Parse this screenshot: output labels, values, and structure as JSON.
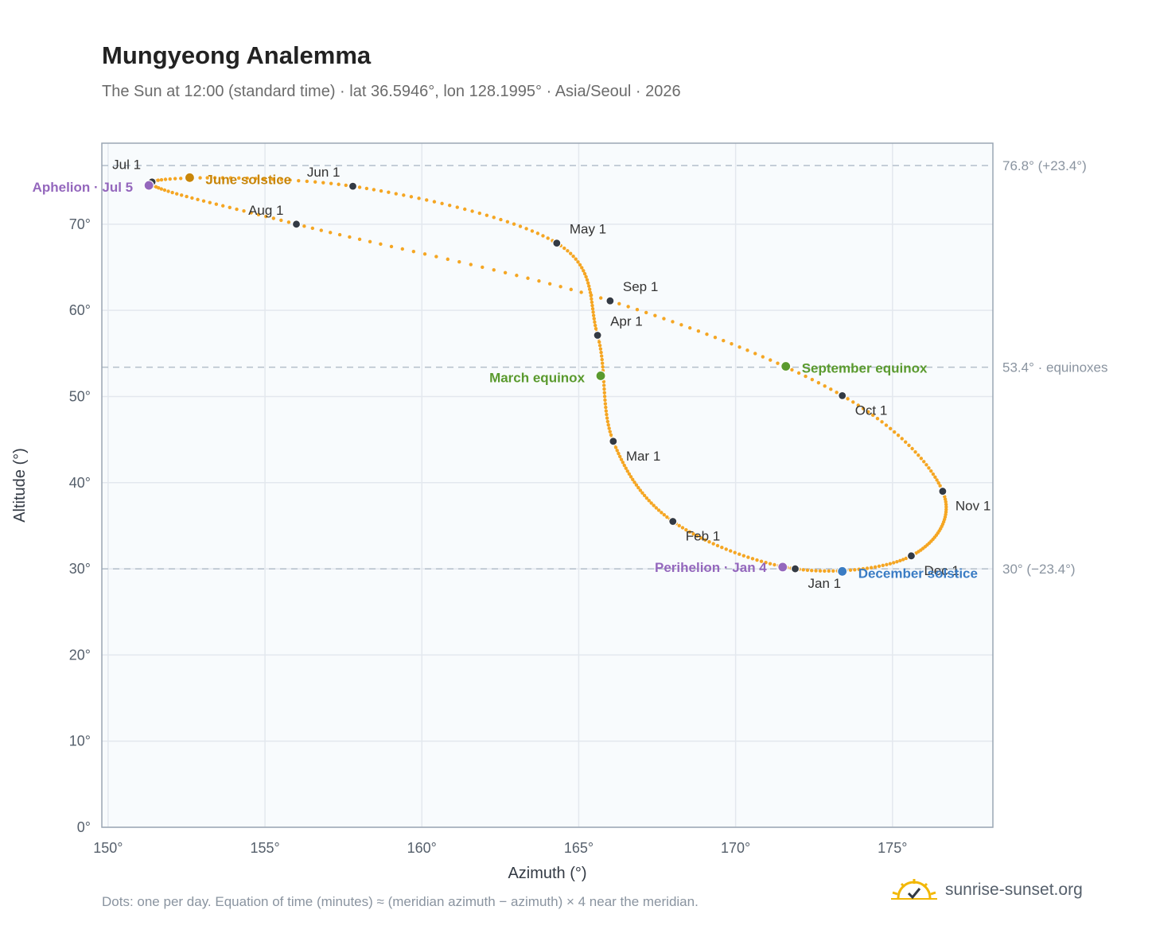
{
  "header": {
    "title": "Mungyeong Analemma",
    "subtitle": "The Sun at 12:00 (standard time) · lat 36.5946°, lon 128.1995° · Asia/Seoul · 2026"
  },
  "footer": {
    "note": "Dots: one per day. Equation of time (minutes) ≈ (meridian azimuth − azimuth) × 4 near the meridian.",
    "brand": "sunrise-sunset.org"
  },
  "chart_data": {
    "type": "scatter",
    "xlabel": "Azimuth (°)",
    "ylabel": "Altitude (°)",
    "xlim": [
      149.8,
      178.2
    ],
    "ylim": [
      0,
      79.4
    ],
    "x_ticks": [
      150,
      155,
      160,
      165,
      170,
      175
    ],
    "x_tick_labels": [
      "150°",
      "155°",
      "160°",
      "165°",
      "170°",
      "175°"
    ],
    "y_ticks": [
      0,
      10,
      20,
      30,
      40,
      50,
      60,
      70
    ],
    "y_tick_labels": [
      "0°",
      "10°",
      "20°",
      "30°",
      "40°",
      "50°",
      "60°",
      "70°"
    ],
    "grid": true,
    "reference_lines": [
      {
        "y": 76.8,
        "label": "76.8° (+23.4°)"
      },
      {
        "y": 53.4,
        "label": "53.4° · equinoxes"
      },
      {
        "y": 30.0,
        "label": "30° (−23.4°)"
      }
    ],
    "months": [
      {
        "label": "Jan 1",
        "x": 171.9,
        "y": 30.0
      },
      {
        "label": "Feb 1",
        "x": 168.0,
        "y": 35.5
      },
      {
        "label": "Mar 1",
        "x": 166.1,
        "y": 44.8
      },
      {
        "label": "Apr 1",
        "x": 165.6,
        "y": 57.1
      },
      {
        "label": "May 1",
        "x": 164.3,
        "y": 67.8
      },
      {
        "label": "Jun 1",
        "x": 157.8,
        "y": 74.4
      },
      {
        "label": "Jul 1",
        "x": 151.4,
        "y": 74.9
      },
      {
        "label": "Aug 1",
        "x": 156.0,
        "y": 70.0
      },
      {
        "label": "Sep 1",
        "x": 166.0,
        "y": 61.1
      },
      {
        "label": "Oct 1",
        "x": 173.4,
        "y": 50.1
      },
      {
        "label": "Nov 1",
        "x": 176.6,
        "y": 39.0
      },
      {
        "label": "Dec 1",
        "x": 175.6,
        "y": 31.5
      }
    ],
    "events": [
      {
        "label": "Aphelion · Jul 5",
        "x": 151.3,
        "y": 74.5,
        "color": "#9467bd"
      },
      {
        "label": "June solstice",
        "x": 152.6,
        "y": 75.4,
        "color": "#c8860a"
      },
      {
        "label": "March equinox",
        "x": 165.7,
        "y": 52.4,
        "color": "#5a9a2e"
      },
      {
        "label": "September equinox",
        "x": 171.6,
        "y": 53.5,
        "color": "#5a9a2e"
      },
      {
        "label": "Perihelion · Jan 4",
        "x": 171.5,
        "y": 30.2,
        "color": "#9467bd"
      },
      {
        "label": "December solstice",
        "x": 173.4,
        "y": 29.7,
        "color": "#3a7cc4"
      }
    ],
    "path_color": "#f5a623",
    "month_marker_color": "#333a44"
  }
}
